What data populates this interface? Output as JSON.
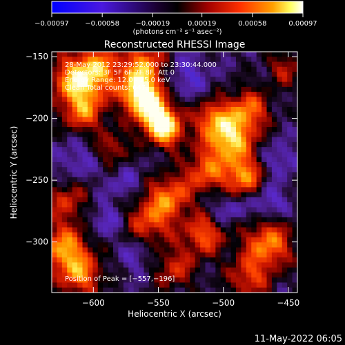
{
  "chart_data": {
    "type": "heatmap",
    "title": "Reconstructed RHESSI Image",
    "xlabel": "Heliocentric X (arcsec)",
    "ylabel": "Heliocentric Y (arcsec)",
    "xlim": [
      -632,
      -443
    ],
    "ylim": [
      -341,
      -146
    ],
    "xticks": [
      -600,
      -550,
      -500,
      -450
    ],
    "xtick_labels": [
      "−600",
      "−550",
      "−500",
      "−450"
    ],
    "yticks": [
      -150,
      -200,
      -250,
      -300
    ],
    "ytick_labels": [
      "−150",
      "−200",
      "−250",
      "−300"
    ],
    "colorbar": {
      "range": [
        -0.00097,
        0.00097
      ],
      "ticks": [
        -0.00097,
        -0.00058,
        -0.00019,
        0.00019,
        0.00058,
        0.00097
      ],
      "tick_labels": [
        "−0.00097",
        "−0.00058",
        "−0.00019",
        "0.00019",
        "0.00058",
        "0.00097"
      ],
      "unit_label": "(photons cm⁻² s⁻¹ asec⁻²)",
      "colormap": [
        "#0000ff",
        "#5a20c8",
        "#000000",
        "#a00000",
        "#ff3000",
        "#ff9000",
        "#ffff80",
        "#ffffff"
      ]
    },
    "peak": [
      -557,
      -196
    ],
    "annotations": [
      "28-May-2012 23:29:52.000 to 23:30:44.000",
      "Detectors: 3F 5F 6F 7F 8F, Att 0",
      "Energy Range: 12.0 - 25.0 keV",
      "Clean     Total counts: 647.",
      "Position of Peak = [−557,−196]"
    ],
    "grid": false
  },
  "footer": {
    "date": "11-May-2022 06:05"
  }
}
